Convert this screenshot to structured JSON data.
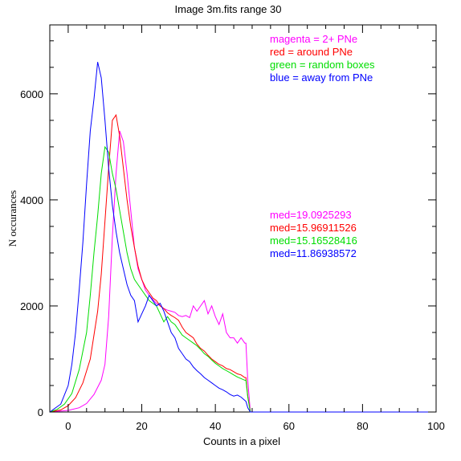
{
  "chart_data": {
    "type": "line",
    "title": "Image 3m.fits   range 30",
    "xlabel": "Counts in a pixel",
    "ylabel": "N occurances",
    "xlim": [
      -5,
      100
    ],
    "ylim": [
      0,
      7300
    ],
    "x_ticks": [
      0,
      20,
      40,
      60,
      80,
      100
    ],
    "y_ticks": [
      0,
      2000,
      4000,
      6000
    ],
    "grid": false,
    "legend_position": "top-right",
    "legend": [
      {
        "text": "magenta = 2+ PNe",
        "color": "#ff00ff"
      },
      {
        "text": "red = around PNe",
        "color": "#ff0000"
      },
      {
        "text": "green = random boxes",
        "color": "#00dd00"
      },
      {
        "text": "blue = away from PNe",
        "color": "#0000ff"
      }
    ],
    "medians": [
      {
        "text": "med=19.0925293",
        "color": "#ff00ff"
      },
      {
        "text": "med=15.96911526",
        "color": "#ff0000"
      },
      {
        "text": "med=15.16528416",
        "color": "#00dd00"
      },
      {
        "text": "med=11.86938572",
        "color": "#0000ff"
      }
    ],
    "series": [
      {
        "color": "#ff00ff",
        "x": [
          -5,
          0,
          3,
          5,
          7,
          9,
          10,
          11,
          12,
          13,
          14,
          15,
          16,
          17,
          18,
          19,
          20,
          21,
          22,
          23,
          24,
          25,
          26,
          27,
          28,
          29,
          30,
          31,
          32,
          33,
          34,
          35,
          36,
          37,
          38,
          39,
          40,
          41,
          42,
          43,
          44,
          45,
          46,
          47,
          48,
          48.3,
          48.8,
          49.5,
          100
        ],
        "y": [
          0,
          30,
          80,
          160,
          330,
          600,
          900,
          1800,
          3300,
          4500,
          5300,
          5100,
          4500,
          3800,
          3100,
          2700,
          2500,
          2300,
          2200,
          2120,
          2050,
          2000,
          1950,
          1920,
          1900,
          1880,
          1820,
          1800,
          1820,
          1780,
          2000,
          1900,
          2000,
          2100,
          1850,
          2000,
          1800,
          1650,
          1850,
          1500,
          1400,
          1400,
          1300,
          1400,
          1300,
          1300,
          600,
          0,
          0
        ]
      },
      {
        "color": "#ff0000",
        "x": [
          -5,
          -2,
          0,
          2,
          4,
          6,
          8,
          9,
          10,
          11,
          12,
          13,
          14,
          15,
          16,
          17,
          18,
          19,
          20,
          21,
          22,
          23,
          24,
          25,
          26,
          27,
          28,
          29,
          30,
          31,
          32,
          33,
          34,
          35,
          36,
          37,
          38,
          39,
          40,
          41,
          42,
          43,
          44,
          45,
          46,
          47,
          48,
          48.3,
          48.8,
          49.5,
          100
        ],
        "y": [
          0,
          40,
          120,
          270,
          550,
          1000,
          1900,
          2600,
          3600,
          4600,
          5500,
          5600,
          5200,
          4600,
          4000,
          3500,
          3100,
          2750,
          2500,
          2350,
          2250,
          2150,
          2100,
          2000,
          1950,
          1870,
          1820,
          1780,
          1730,
          1600,
          1500,
          1450,
          1400,
          1280,
          1200,
          1150,
          1070,
          1000,
          950,
          900,
          870,
          820,
          800,
          760,
          720,
          700,
          650,
          650,
          300,
          0,
          0
        ]
      },
      {
        "color": "#00dd00",
        "x": [
          -5,
          -3,
          -1,
          1,
          3,
          5,
          6,
          7,
          8,
          9,
          10,
          11,
          12,
          13,
          14,
          15,
          16,
          17,
          18,
          19,
          20,
          21,
          22,
          23,
          24,
          25,
          26,
          27,
          28,
          29,
          30,
          31,
          32,
          33,
          34,
          35,
          36,
          37,
          38,
          39,
          40,
          41,
          42,
          43,
          44,
          45,
          46,
          47,
          48,
          48.3,
          48.8,
          49.5,
          100
        ],
        "y": [
          0,
          50,
          150,
          350,
          800,
          1500,
          2200,
          3000,
          3700,
          4500,
          5000,
          4900,
          4500,
          4200,
          3800,
          3400,
          3000,
          2700,
          2500,
          2400,
          2300,
          2200,
          2100,
          2050,
          2000,
          1850,
          1700,
          1800,
          1700,
          1650,
          1550,
          1450,
          1400,
          1350,
          1300,
          1250,
          1180,
          1100,
          1050,
          980,
          920,
          870,
          820,
          780,
          740,
          700,
          660,
          630,
          600,
          600,
          280,
          0,
          0
        ]
      },
      {
        "color": "#0000ff",
        "x": [
          -5,
          -2,
          0,
          1,
          2,
          3,
          4,
          5,
          6,
          7,
          8,
          9,
          10,
          11,
          12,
          13,
          14,
          15,
          16,
          17,
          18,
          19,
          20,
          21,
          22,
          23,
          24,
          25,
          26,
          27,
          28,
          29,
          30,
          31,
          32,
          33,
          34,
          35,
          36,
          37,
          38,
          39,
          40,
          41,
          42,
          43,
          44,
          45,
          46,
          47,
          48,
          48.3,
          48.8,
          49.5,
          100
        ],
        "y": [
          0,
          150,
          500,
          900,
          1500,
          2300,
          3200,
          4300,
          5300,
          5900,
          6600,
          6300,
          5500,
          4600,
          3900,
          3400,
          3000,
          2700,
          2400,
          2200,
          2100,
          1700,
          1850,
          2000,
          2200,
          2100,
          2000,
          2050,
          1900,
          1700,
          1500,
          1400,
          1200,
          1100,
          1000,
          950,
          850,
          780,
          720,
          650,
          600,
          550,
          500,
          450,
          420,
          380,
          330,
          300,
          320,
          280,
          220,
          200,
          80,
          0,
          0
        ]
      }
    ]
  }
}
